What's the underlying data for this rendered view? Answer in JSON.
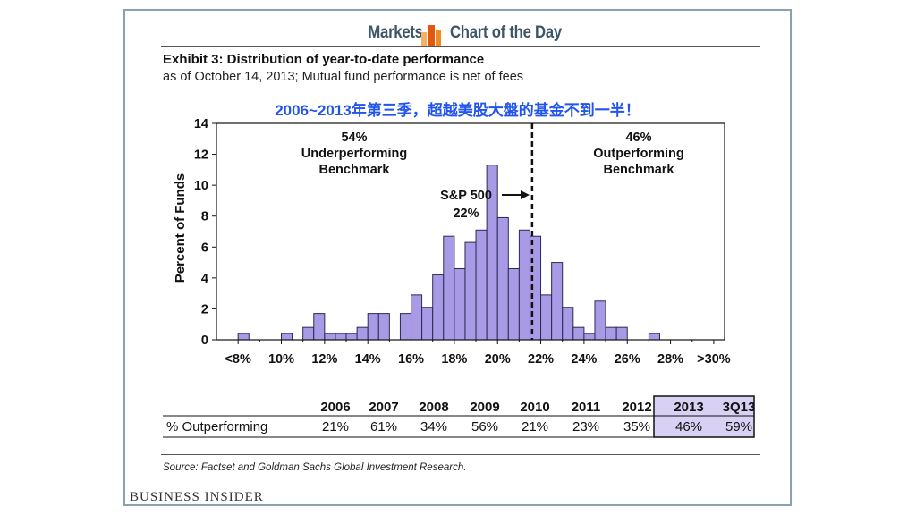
{
  "header": {
    "left": "Markets",
    "right": "Chart of the Day",
    "logo_icon": "bar-chart-icon",
    "logo_colors": [
      "#f08a24",
      "#e3570f",
      "#f4b263"
    ]
  },
  "exhibit": {
    "title": "Exhibit 3: Distribution of year-to-date performance",
    "subtitle": "as of October 14, 2013; Mutual fund performance is net of fees",
    "annotation_cn": "2006~2013年第三季，超越美股大盤的基金不到一半！"
  },
  "chart_data": {
    "type": "bar",
    "ylabel": "Percent of Funds",
    "ylim": [
      0,
      14
    ],
    "yticks": [
      0,
      2,
      4,
      6,
      8,
      10,
      12,
      14
    ],
    "xtick_labels": [
      "<8%",
      "10%",
      "12%",
      "14%",
      "16%",
      "18%",
      "20%",
      "22%",
      "24%",
      "26%",
      "28%",
      ">30%"
    ],
    "bar_start": 8,
    "bar_width": 0.5,
    "values": [
      0.4,
      0,
      0,
      0,
      0.4,
      0,
      0.8,
      1.7,
      0.4,
      0.4,
      0.4,
      0.8,
      1.7,
      1.7,
      0,
      1.7,
      2.9,
      2.1,
      4.2,
      6.7,
      4.6,
      6.3,
      7.1,
      11.3,
      7.9,
      4.6,
      7.1,
      6.7,
      2.9,
      5.0,
      2.1,
      0.8,
      0.4,
      2.5,
      0.8,
      0.8,
      0,
      0,
      0.4
    ],
    "bar_color": "#a99ae6",
    "benchmark_x": 21.6,
    "annotations": {
      "under_pct": "54%",
      "under_label1": "Underperforming",
      "under_label2": "Benchmark",
      "out_pct": "46%",
      "out_label1": "Outperforming",
      "out_label2": "Benchmark",
      "sp_label": "S&P 500",
      "sp_pct": "22%"
    }
  },
  "table": {
    "row_label": "% Outperforming",
    "years": [
      "2006",
      "2007",
      "2008",
      "2009",
      "2010",
      "2011",
      "2012",
      "2013",
      "3Q13"
    ],
    "values": [
      "21%",
      "61%",
      "34%",
      "56%",
      "21%",
      "23%",
      "35%",
      "46%",
      "59%"
    ],
    "highlight_color": "#d9d1f4"
  },
  "source": "Source: Factset and Goldman Sachs Global Investment Research.",
  "footer": {
    "brand": "Business Insider"
  }
}
